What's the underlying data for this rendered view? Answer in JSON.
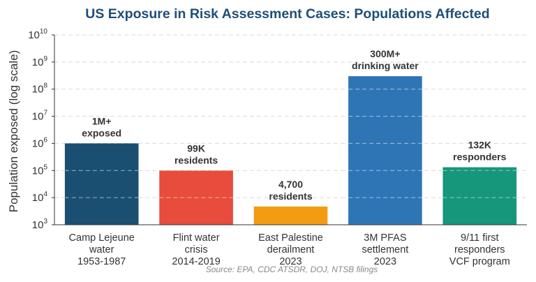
{
  "chart_data": {
    "type": "bar",
    "title": "US Exposure in Risk Assessment Cases: Populations Affected",
    "title_color": "#1f4e79",
    "ylabel": "Population exposed (log scale)",
    "xlabel": "",
    "y_scale": "log",
    "ylim": [
      1000,
      10000000000
    ],
    "grid": "horizontal dashed",
    "legend": "none",
    "categories": [
      [
        "Camp Lejeune",
        "water",
        "1953-1987"
      ],
      [
        "Flint water",
        "crisis",
        "2014-2019"
      ],
      [
        "East Palestine",
        "derailment",
        "2023"
      ],
      [
        "3M PFAS",
        "settlement",
        "2023"
      ],
      [
        "9/11 first",
        "responders",
        "VCF program"
      ]
    ],
    "values": [
      1000000,
      99000,
      4700,
      300000000,
      132000
    ],
    "colors": [
      "#1b4f72",
      "#e74c3c",
      "#f39c12",
      "#2e75b6",
      "#16967a"
    ],
    "bar_labels": [
      [
        "1M+",
        "exposed"
      ],
      [
        "99K",
        "residents"
      ],
      [
        "4,700",
        "residents"
      ],
      [
        "300M+",
        "drinking water"
      ],
      [
        "132K",
        "responders"
      ]
    ],
    "y_ticks": [
      {
        "base": "10",
        "exp": "3"
      },
      {
        "base": "10",
        "exp": "4"
      },
      {
        "base": "10",
        "exp": "5"
      },
      {
        "base": "10",
        "exp": "6"
      },
      {
        "base": "10",
        "exp": "7"
      },
      {
        "base": "10",
        "exp": "8"
      },
      {
        "base": "10",
        "exp": "9"
      },
      {
        "base": "10",
        "exp": "10"
      }
    ],
    "source": "Source: EPA, CDC ATSDR, DOJ, NTSB filings"
  }
}
